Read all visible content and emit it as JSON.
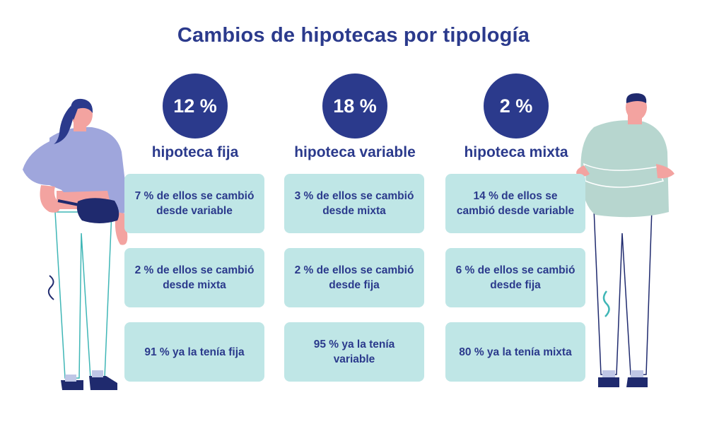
{
  "title": "Cambios de hipotecas por tipología",
  "columns": [
    {
      "percent": "12 %",
      "label": "hipoteca fija",
      "boxes": [
        "7 % de ellos se cambió desde variable",
        "2 % de ellos se cambió desde mixta",
        "91 % ya la tenía fija"
      ]
    },
    {
      "percent": "18 %",
      "label": "hipoteca variable",
      "boxes": [
        "3 % de ellos se cambió desde mixta",
        "2 % de ellos se cambió desde fija",
        "95 % ya la tenía variable"
      ]
    },
    {
      "percent": "2 %",
      "label": "hipoteca mixta",
      "boxes": [
        "14 % de ellos se cambió desde variable",
        "6 % de ellos se cambió desde fija",
        "80 % ya la tenía mixta"
      ]
    }
  ],
  "colors": {
    "navy": "#2b3a8c",
    "box": "#bfe6e6",
    "woman_top": "#9fa6dc",
    "man_top": "#b7d6cf"
  }
}
